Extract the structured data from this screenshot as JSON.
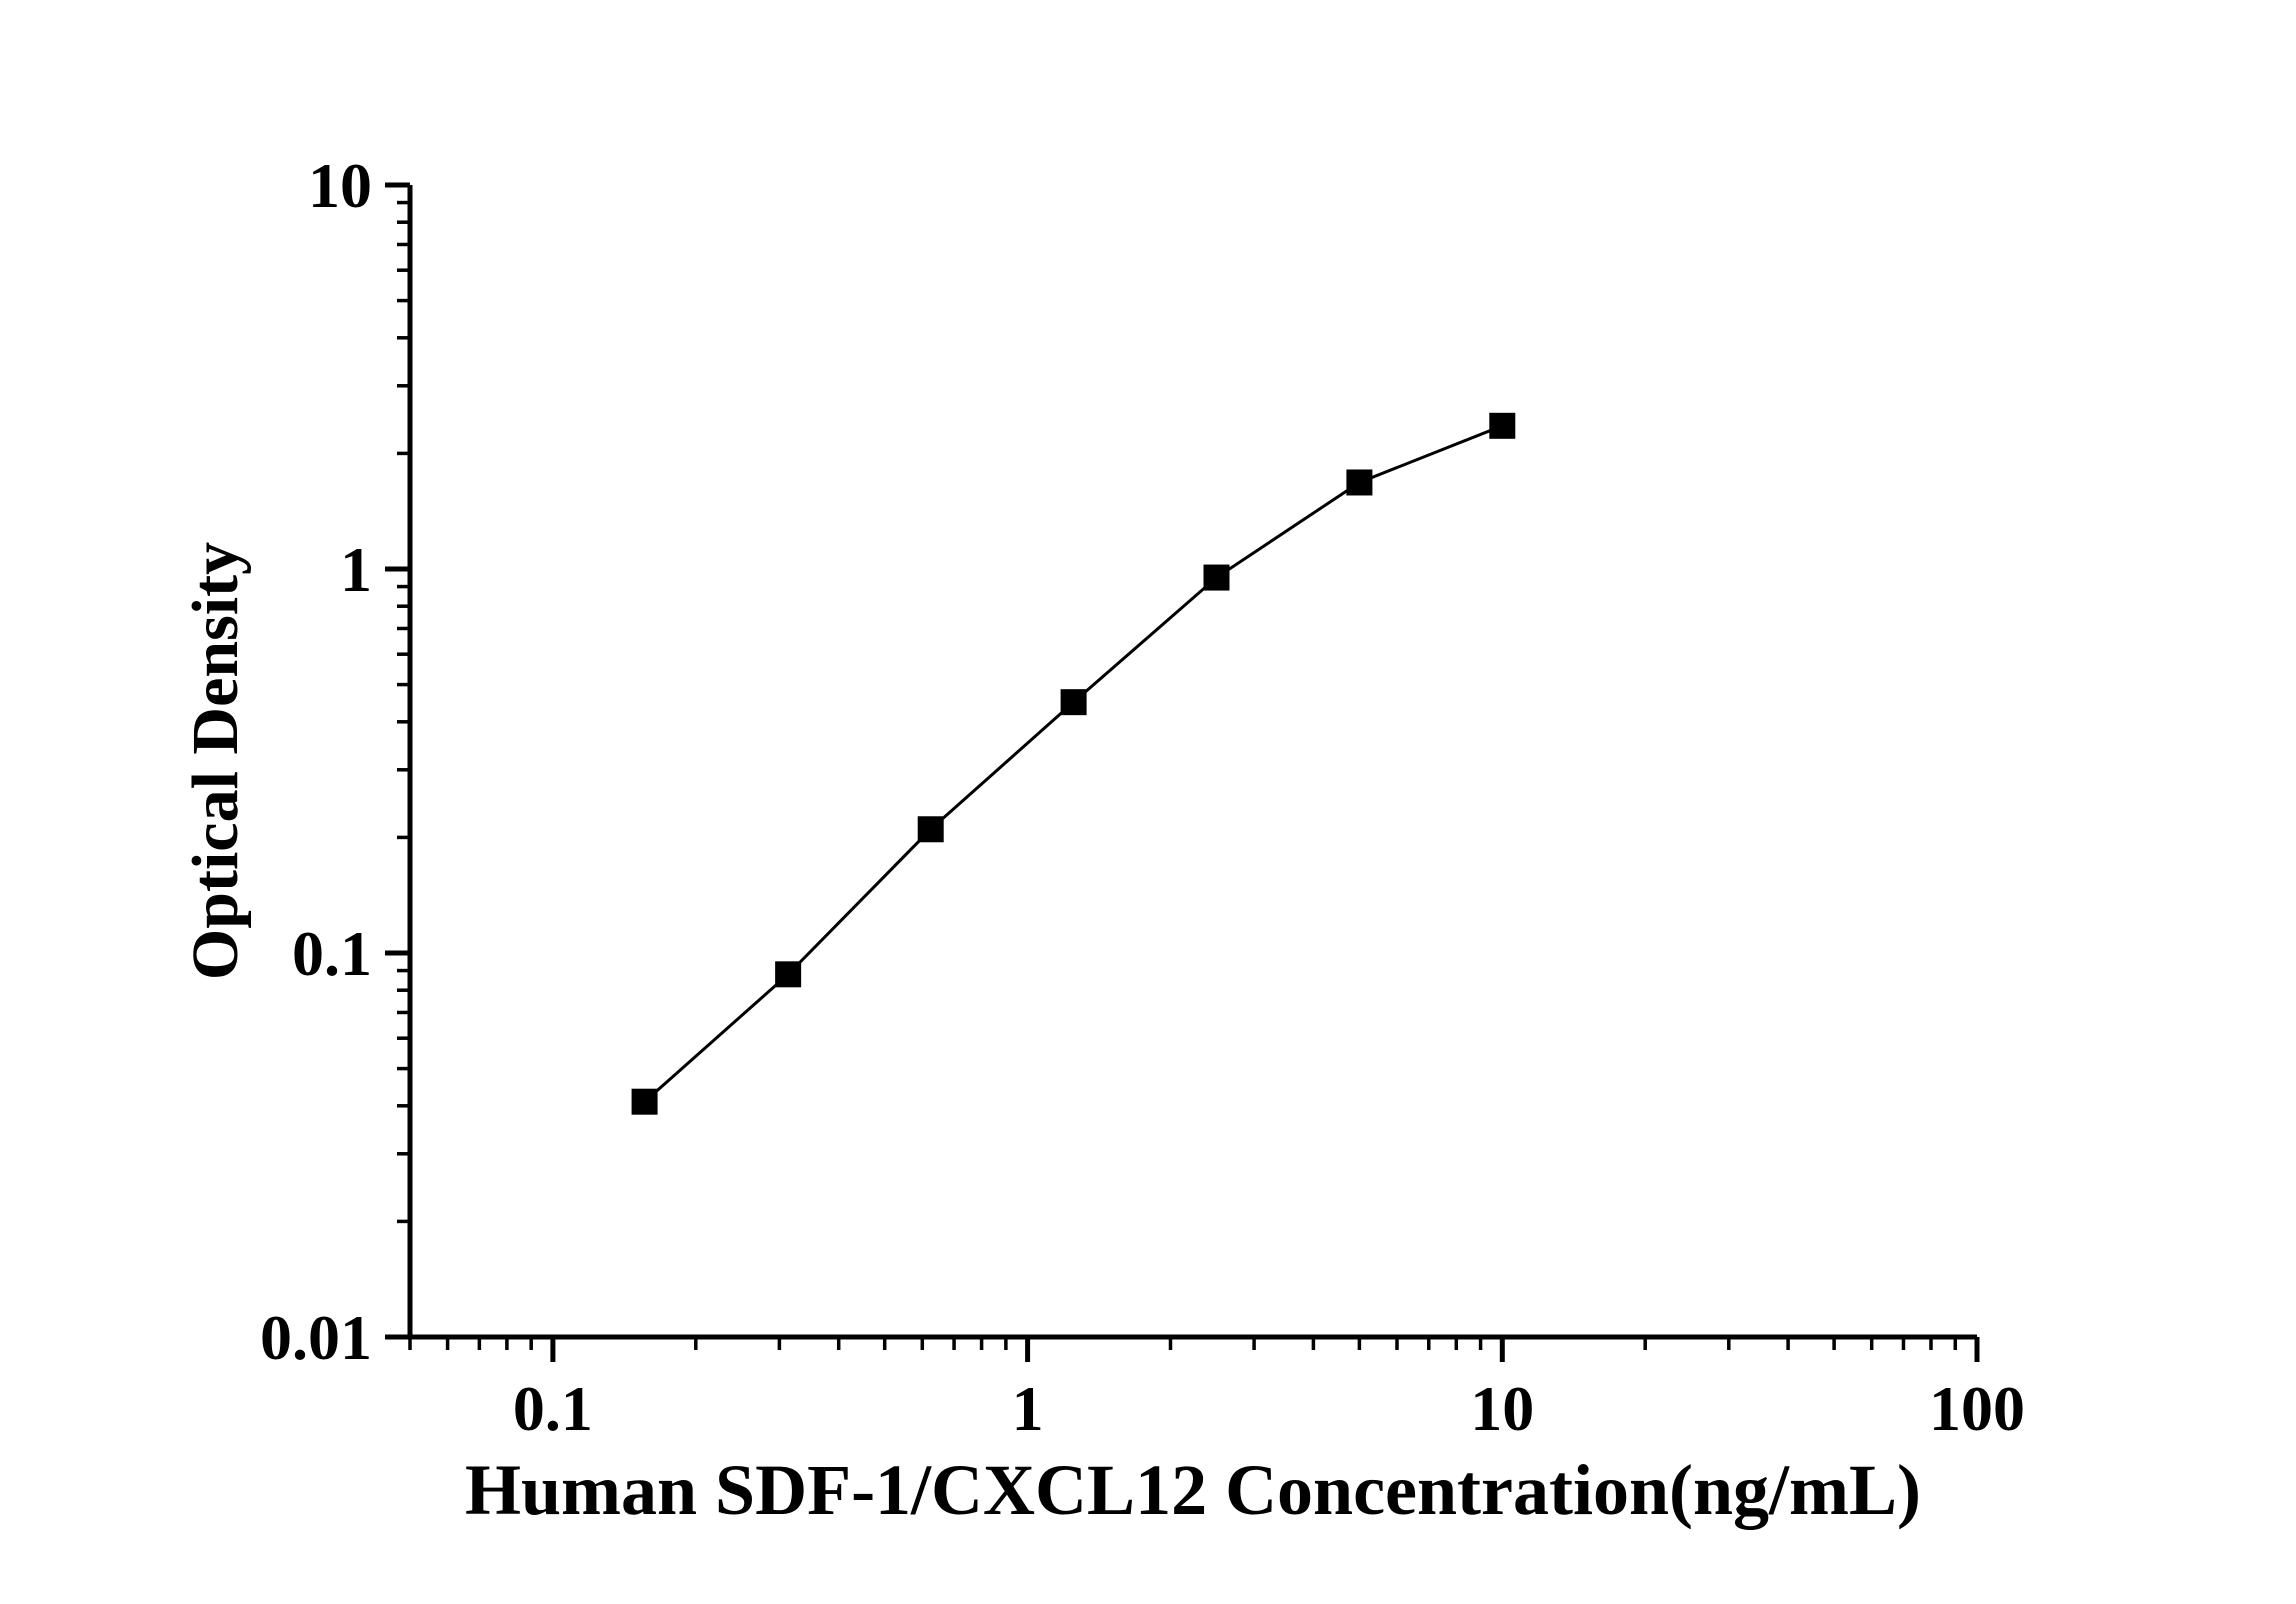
{
  "chart_data": {
    "type": "line",
    "title": "",
    "xlabel": "Human SDF-1/CXCL12 Concentration(ng/mL)",
    "ylabel": "Optical Density",
    "xscale": "log",
    "yscale": "log",
    "xlim": [
      0.05,
      100
    ],
    "ylim": [
      0.01,
      10
    ],
    "xticks": {
      "values": [
        0.1,
        1,
        10,
        100
      ],
      "labels": [
        "0.1",
        "1",
        "10",
        "100"
      ]
    },
    "yticks": {
      "values": [
        10,
        1,
        0.1,
        0.01
      ],
      "labels": [
        "10",
        "1",
        "0.1",
        "0.01"
      ]
    },
    "series": [
      {
        "marker": "filled-square",
        "x": [
          0.156,
          0.313,
          0.625,
          1.25,
          2.5,
          5,
          10
        ],
        "y": [
          0.041,
          0.088,
          0.21,
          0.45,
          0.95,
          1.68,
          2.36
        ]
      }
    ],
    "grid": false,
    "legend": "none",
    "colors": {
      "line": "#000000",
      "marker": "#000000",
      "text": "#000000",
      "background": "#ffffff"
    }
  }
}
